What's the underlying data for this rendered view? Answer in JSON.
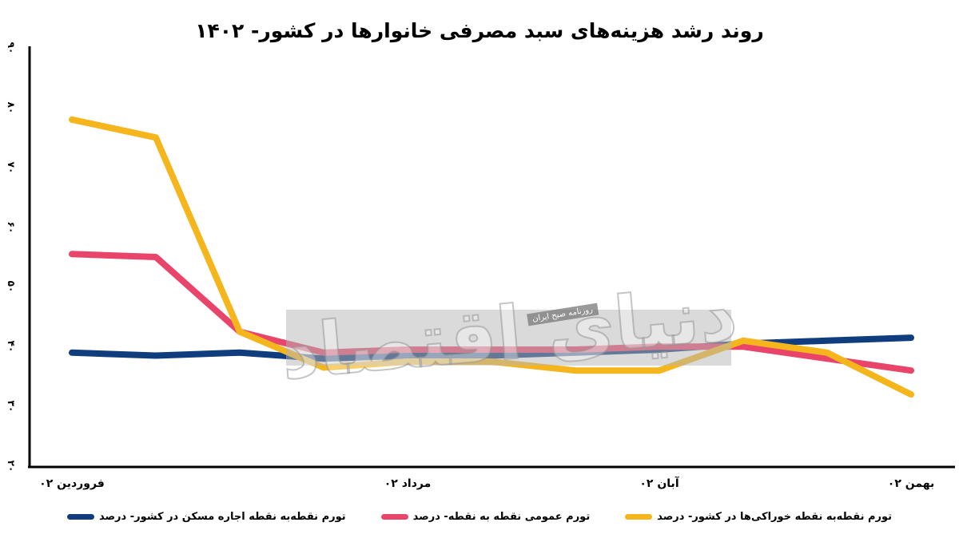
{
  "watermark": {
    "logo_text": "دنیای اقتصاد",
    "tagline": "روزنامه صبح ایران"
  },
  "chart_data": {
    "type": "line",
    "title": "روند رشد هزینه‌های سبد مصرفی خانوارها در کشور- ۱۴۰۲",
    "xlabel": "",
    "ylabel": "",
    "ylim": [
      20,
      90
    ],
    "grid": false,
    "legend_position": "bottom",
    "y_ticks": [
      {
        "value": 90,
        "label": "۹۰"
      },
      {
        "value": 80,
        "label": "۸۰"
      },
      {
        "value": 70,
        "label": "۷۰"
      },
      {
        "value": 60,
        "label": "۶۰"
      },
      {
        "value": 50,
        "label": "۵۰"
      },
      {
        "value": 40,
        "label": "۴۰"
      },
      {
        "value": 30,
        "label": "۳۰"
      },
      {
        "value": 20,
        "label": "۲۰"
      }
    ],
    "x": [
      1,
      2,
      3,
      4,
      5,
      6,
      7,
      8,
      9,
      10,
      11
    ],
    "x_tick_labels": [
      {
        "x": 1,
        "label": "فروردین ۰۲"
      },
      {
        "x": 5,
        "label": "مرداد ۰۲"
      },
      {
        "x": 8,
        "label": "آبان ۰۲"
      },
      {
        "x": 11,
        "label": "بهمن ۰۲"
      }
    ],
    "series": [
      {
        "name": "تورم نقطه‌به نقطه خوراکی‌ها در کشور- درصد",
        "color": "#f5b51c",
        "values": [
          78,
          75,
          42.5,
          36.5,
          37.5,
          37.5,
          36,
          36,
          41,
          39,
          32
        ]
      },
      {
        "name": "تورم عمومی نقطه به نقطه- درصد",
        "color": "#e9456a",
        "values": [
          55.5,
          55,
          42.5,
          39,
          39.5,
          39.5,
          39.5,
          40,
          40,
          38,
          36
        ]
      },
      {
        "name": "تورم نقطه‌به نقطه اجاره مسکن در کشور- درصد",
        "color": "#0f3d7e",
        "values": [
          39,
          38.5,
          39,
          38,
          38.5,
          38.5,
          39,
          39.5,
          40.5,
          41,
          41.5
        ]
      }
    ]
  }
}
